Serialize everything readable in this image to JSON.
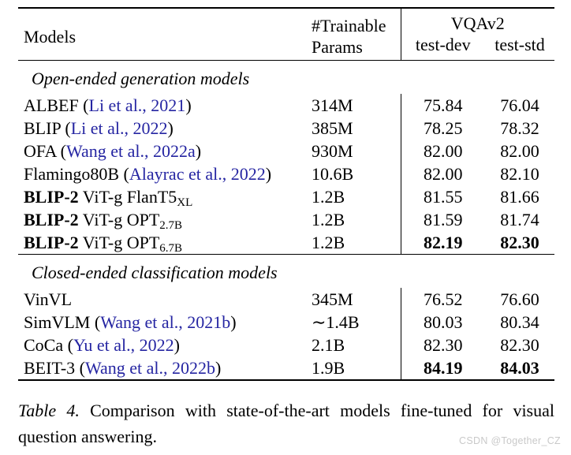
{
  "colors": {
    "cite": "#2525a2",
    "watermark": "#c9c9c9"
  },
  "table": {
    "header": {
      "models": "Models",
      "params_line1": "#Trainable",
      "params_line2": "Params",
      "group": "VQAv2",
      "dev": "test-dev",
      "std": "test-std"
    },
    "sections": [
      {
        "title": "Open-ended generation models",
        "rows": [
          {
            "pre": "ALBEF (",
            "cite": "Li et al., 2021",
            "post": ")",
            "params": "314M",
            "dev": "75.84",
            "std": "76.04"
          },
          {
            "pre": "BLIP (",
            "cite": "Li et al., 2022",
            "post": ")",
            "params": "385M",
            "dev": "78.25",
            "std": "78.32"
          },
          {
            "pre": "OFA (",
            "cite": "Wang et al., 2022a",
            "post": ")",
            "params": "930M",
            "dev": "82.00",
            "std": "82.00"
          },
          {
            "pre": "Flamingo80B (",
            "cite": "Alayrac et al., 2022",
            "post": ")",
            "params": "10.6B",
            "dev": "82.00",
            "std": "82.10"
          },
          {
            "bold": "BLIP-2",
            "pre": " ViT-g FlanT5",
            "sub": "XL",
            "params": "1.2B",
            "dev": "81.55",
            "std": "81.66"
          },
          {
            "bold": "BLIP-2",
            "pre": " ViT-g OPT",
            "sub": "2.7B",
            "params": "1.2B",
            "dev": "81.59",
            "std": "81.74"
          },
          {
            "bold": "BLIP-2",
            "pre": " ViT-g OPT",
            "sub": "6.7B",
            "params": "1.2B",
            "dev": "82.19",
            "std": "82.30"
          }
        ]
      },
      {
        "title": "Closed-ended classification models",
        "rows": [
          {
            "pre": "VinVL",
            "params": "345M",
            "dev": "76.52",
            "std": "76.60"
          },
          {
            "pre": "SimVLM (",
            "cite": "Wang et al., 2021b",
            "post": ")",
            "params": "∼1.4B",
            "dev": "80.03",
            "std": "80.34"
          },
          {
            "pre": "CoCa (",
            "cite": "Yu et al., 2022",
            "post": ")",
            "params": "2.1B",
            "dev": "82.30",
            "std": "82.30"
          },
          {
            "pre": "BEIT-3 (",
            "cite": "Wang et al., 2022b",
            "post": ")",
            "params": "1.9B",
            "dev": "84.19",
            "std": "84.03"
          }
        ]
      }
    ]
  },
  "caption": {
    "label": "Table 4.",
    "text": "Comparison with state-of-the-art models fine-tuned for visual question answering."
  },
  "watermark": "CSDN @Together_CZ"
}
